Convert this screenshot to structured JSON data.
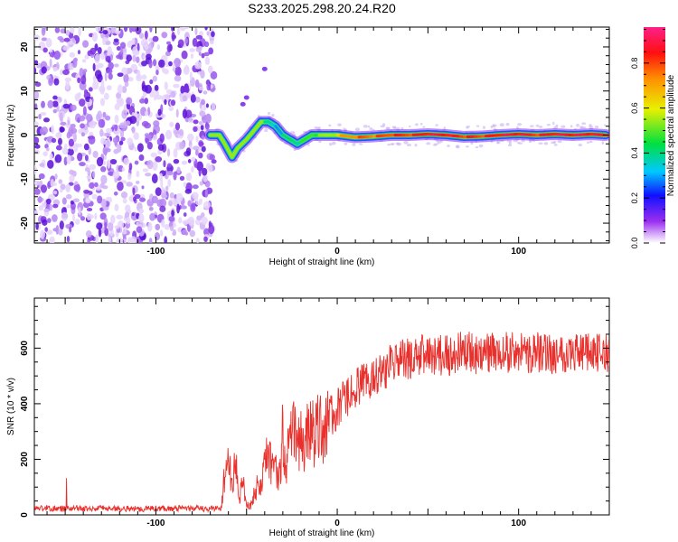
{
  "figure_title": "S233.2025.298.20.24.R20",
  "colors": {
    "snr_line": "#e8302c",
    "band_core": "#e8423a",
    "scatter": "#7a2ee0"
  },
  "colorbar": {
    "label": "Normalized spectral amplitude",
    "ticks": [
      "0.0",
      "0.2",
      "0.4",
      "0.6",
      "0.8"
    ],
    "tick_values": [
      0.0,
      0.2,
      0.4,
      0.6,
      0.8
    ],
    "range": [
      0,
      0.96
    ]
  },
  "chart_data": [
    {
      "type": "heatmap",
      "title": "S233.2025.298.20.24.R20",
      "xlabel": "Height of straight line (km)",
      "ylabel": "Frequency (Hz)",
      "xlim": [
        -167,
        150
      ],
      "ylim": [
        -24.5,
        24.5
      ],
      "x_ticks": [
        "-100",
        "0",
        "100"
      ],
      "x_tick_values": [
        -100,
        0,
        100
      ],
      "y_ticks": [
        "-20",
        "-10",
        "0",
        "10",
        "20"
      ],
      "y_tick_values": [
        -20,
        -10,
        0,
        10,
        20
      ],
      "noise_region_x": [
        -167,
        -70
      ],
      "ridge": {
        "x": [
          -70,
          -65,
          -62,
          -58,
          -55,
          -50,
          -46,
          -42,
          -38,
          -34,
          -30,
          -26,
          -22,
          -18,
          -14,
          -10,
          -6,
          0,
          10,
          20,
          30,
          40,
          50,
          60,
          70,
          80,
          90,
          100,
          110,
          120,
          130,
          140,
          148
        ],
        "frequency": [
          0,
          0,
          -2,
          -5,
          -3,
          -1,
          1,
          3,
          3,
          2,
          0,
          -1,
          -2,
          -1,
          0,
          0,
          0,
          0,
          -0.5,
          -0.3,
          0,
          0,
          0.2,
          0,
          -0.4,
          -0.3,
          0,
          0.2,
          0,
          0.2,
          0,
          0.2,
          0
        ],
        "amplitude": [
          0.35,
          0.3,
          0.2,
          0.3,
          0.25,
          0.25,
          0.35,
          0.45,
          0.45,
          0.4,
          0.45,
          0.5,
          0.5,
          0.55,
          0.6,
          0.6,
          0.65,
          0.7,
          0.8,
          0.8,
          0.85,
          0.85,
          0.9,
          0.9,
          0.85,
          0.85,
          0.9,
          0.9,
          0.85,
          0.9,
          0.9,
          0.9,
          0.85
        ]
      }
    },
    {
      "type": "line",
      "xlabel": "Height of straight line (km)",
      "ylabel": "SNR (10 * v/v)",
      "xlim": [
        -167,
        150
      ],
      "ylim": [
        0,
        780
      ],
      "x_ticks": [
        "-100",
        "0",
        "100"
      ],
      "x_tick_values": [
        -100,
        0,
        100
      ],
      "y_ticks": [
        "0",
        "200",
        "400",
        "600"
      ],
      "y_tick_values": [
        0,
        200,
        400,
        600
      ],
      "series": [
        {
          "name": "SNR",
          "x": [
            -167,
            -150,
            -130,
            -110,
            -90,
            -70,
            -64,
            -62,
            -60,
            -58,
            -56,
            -54,
            -52,
            -50,
            -48,
            -46,
            -44,
            -42,
            -40,
            -38,
            -36,
            -34,
            -32,
            -30,
            -28,
            -26,
            -24,
            -22,
            -20,
            -18,
            -16,
            -14,
            -12,
            -10,
            -8,
            -6,
            -4,
            -2,
            0,
            5,
            10,
            15,
            20,
            25,
            30,
            35,
            40,
            50,
            60,
            70,
            80,
            90,
            100,
            110,
            120,
            130,
            140,
            150
          ],
          "y": [
            25,
            22,
            24,
            22,
            24,
            22,
            25,
            150,
            200,
            110,
            180,
            60,
            120,
            40,
            30,
            70,
            110,
            90,
            170,
            220,
            160,
            190,
            140,
            260,
            200,
            250,
            310,
            270,
            280,
            240,
            300,
            330,
            270,
            320,
            330,
            310,
            380,
            340,
            380,
            420,
            460,
            470,
            500,
            520,
            540,
            560,
            560,
            580,
            570,
            590,
            575,
            590,
            580,
            585,
            580,
            590,
            580,
            585
          ]
        }
      ]
    }
  ]
}
